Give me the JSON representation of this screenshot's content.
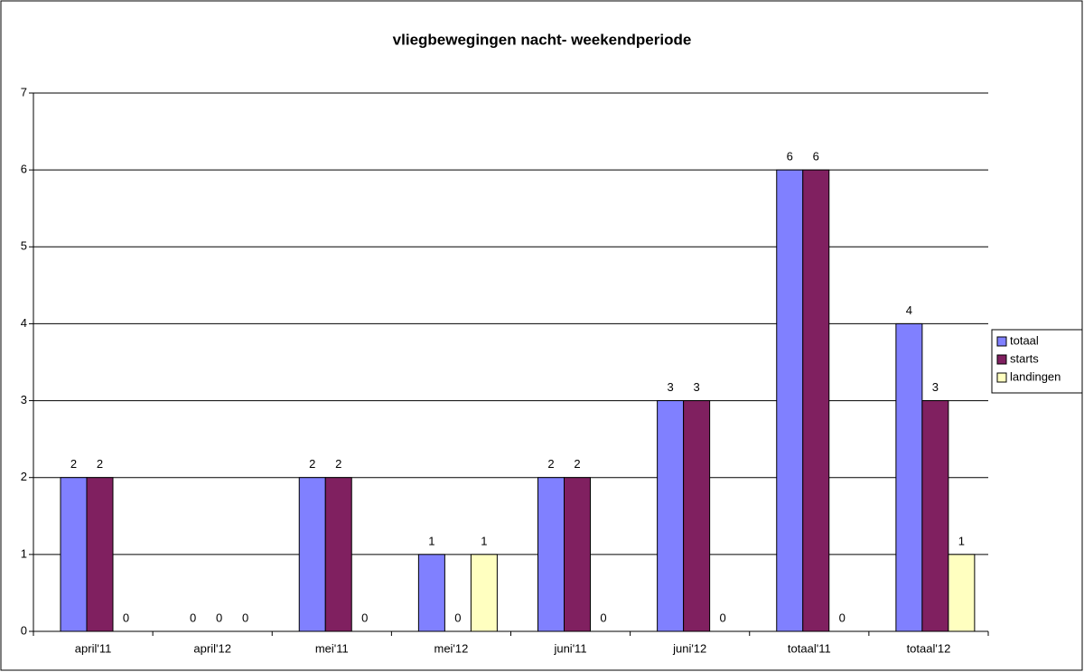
{
  "chart_data": {
    "type": "bar",
    "title": "vliegbewegingen nacht- weekendperiode",
    "categories": [
      "april'11",
      "april'12",
      "mei'11",
      "mei'12",
      "juni'11",
      "juni'12",
      "totaal'11",
      "totaal'12"
    ],
    "series": [
      {
        "name": "totaal",
        "color": "#8080ff",
        "values": [
          2,
          0,
          2,
          1,
          2,
          3,
          6,
          4
        ]
      },
      {
        "name": "starts",
        "color": "#802060",
        "values": [
          2,
          0,
          2,
          0,
          2,
          3,
          6,
          3
        ]
      },
      {
        "name": "landingen",
        "color": "#ffffc0",
        "values": [
          0,
          0,
          0,
          1,
          0,
          0,
          0,
          1
        ]
      }
    ],
    "ylim": [
      0,
      7
    ],
    "yticks": [
      0,
      1,
      2,
      3,
      4,
      5,
      6,
      7
    ],
    "grid": true,
    "legend": "right"
  }
}
